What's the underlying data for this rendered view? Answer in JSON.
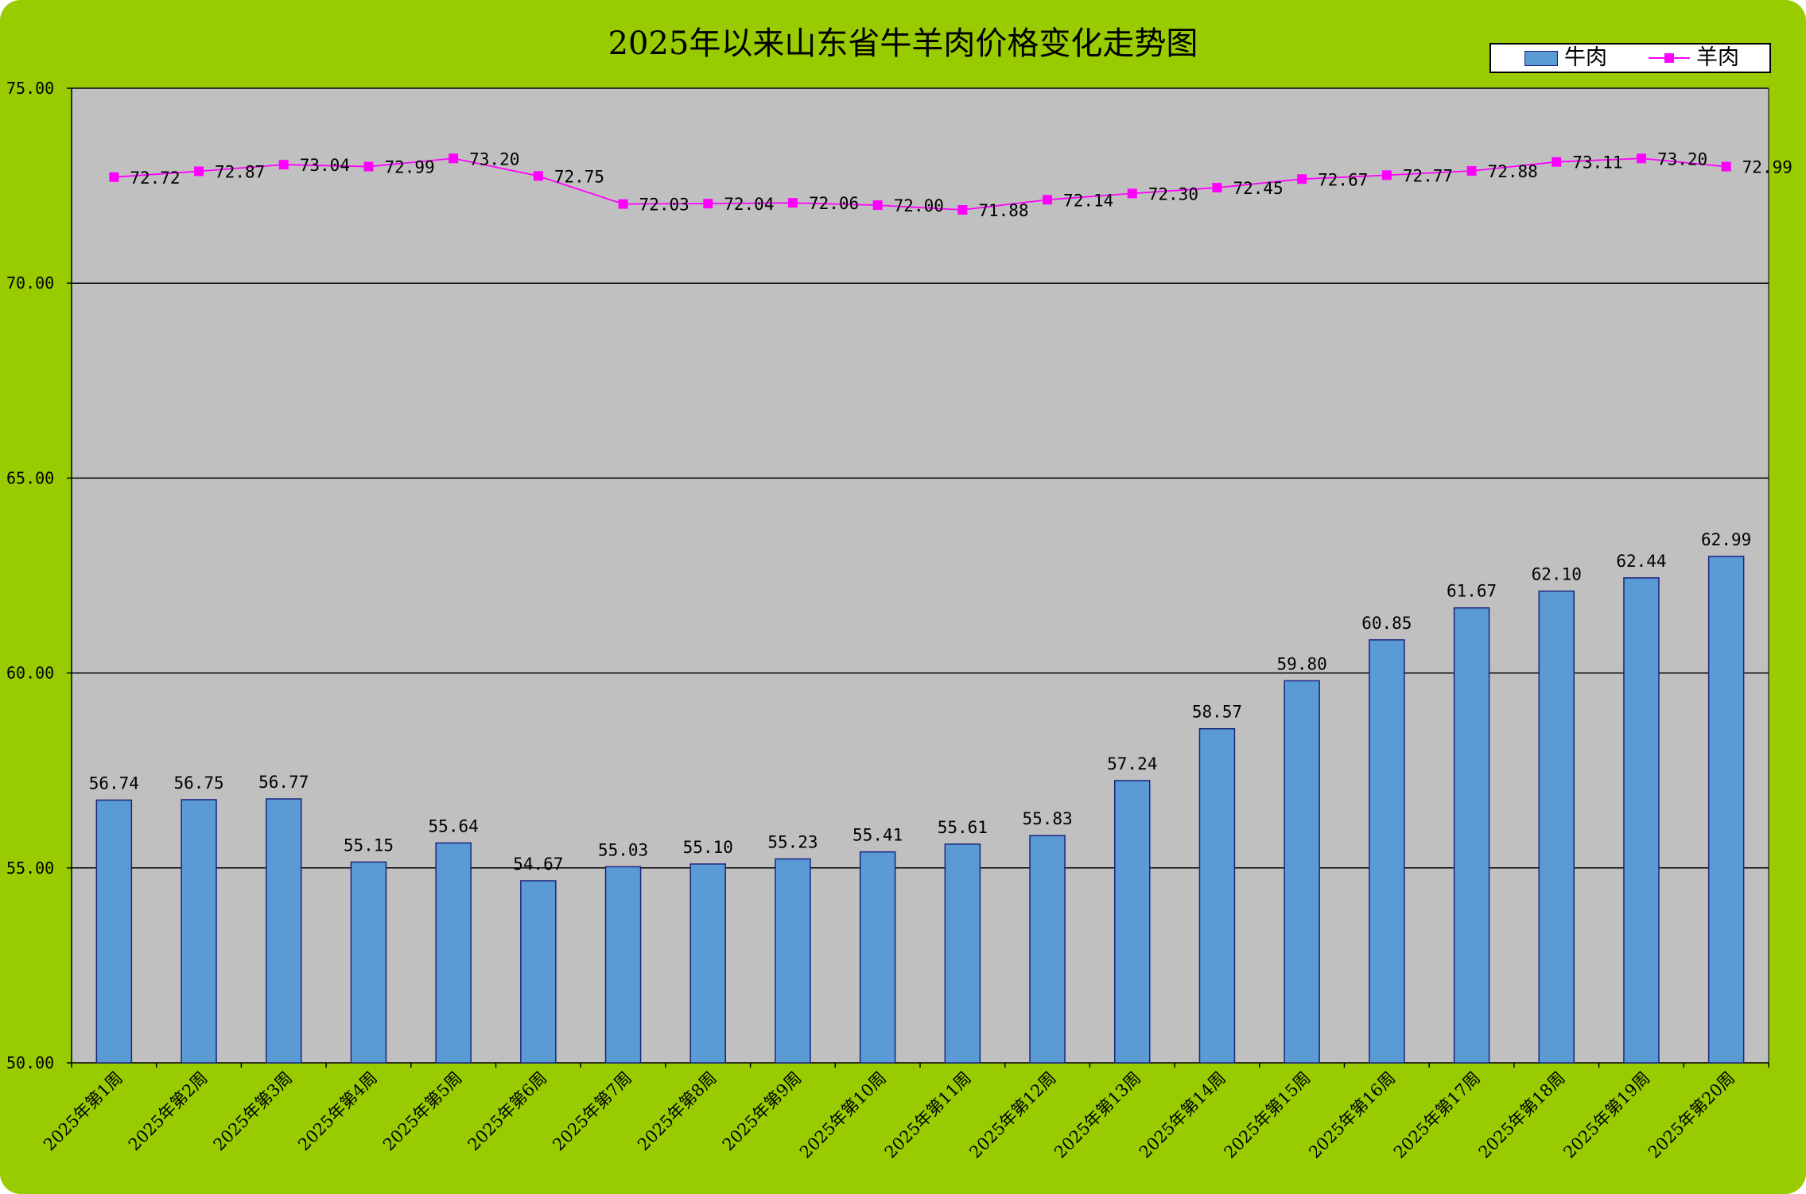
{
  "chart_data": {
    "type": "bar",
    "title": "2025年以来山东省牛羊肉价格变化走势图",
    "categories": [
      "2025年第1周",
      "2025年第2周",
      "2025年第3周",
      "2025年第4周",
      "2025年第5周",
      "2025年第6周",
      "2025年第7周",
      "2025年第8周",
      "2025年第9周",
      "2025年第10周",
      "2025年第11周",
      "2025年第12周",
      "2025年第13周",
      "2025年第14周",
      "2025年第15周",
      "2025年第16周",
      "2025年第17周",
      "2025年第18周",
      "2025年第19周",
      "2025年第20周"
    ],
    "series": [
      {
        "name": "牛肉",
        "type": "bar",
        "color": "#5b9bd5",
        "values": [
          56.74,
          56.75,
          56.77,
          55.15,
          55.64,
          54.67,
          55.03,
          55.1,
          55.23,
          55.41,
          55.61,
          55.83,
          57.24,
          58.57,
          59.8,
          60.85,
          61.67,
          62.1,
          62.44,
          62.99
        ],
        "labels": [
          "56.74",
          "56.75",
          "56.77",
          "55.15",
          "55.64",
          "54.67",
          "55.03",
          "55.10",
          "55.23",
          "55.41",
          "55.61",
          "55.83",
          "57.24",
          "58.57",
          "59.80",
          "60.85",
          "61.67",
          "62.10",
          "62.44",
          "62.99"
        ]
      },
      {
        "name": "羊肉",
        "type": "line",
        "color": "#ff00ff",
        "values": [
          72.72,
          72.87,
          73.04,
          72.99,
          73.2,
          72.75,
          72.03,
          72.04,
          72.06,
          72.0,
          71.88,
          72.14,
          72.3,
          72.45,
          72.67,
          72.77,
          72.88,
          73.11,
          73.2,
          72.99
        ],
        "labels": [
          "72.72",
          "72.87",
          "73.04",
          "72.99",
          "73.20",
          "72.75",
          "72.03",
          "72.04",
          "72.06",
          "72.00",
          "71.88",
          "72.14",
          "72.30",
          "72.45",
          "72.67",
          "72.77",
          "72.88",
          "73.11",
          "73.20",
          "72.99"
        ]
      }
    ],
    "ylim": [
      50,
      75
    ],
    "yticks": [
      50,
      55,
      60,
      65,
      70,
      75
    ],
    "ytick_labels": [
      "50.00",
      "55.00",
      "60.00",
      "65.00",
      "70.00",
      "75.00"
    ],
    "grid": true,
    "legend": "top-right"
  },
  "colors": {
    "frame_background": "#99cc00",
    "plot_background": "#c0c0c0",
    "bar_fill": "#5b9bd5",
    "bar_stroke": "#1a237e",
    "line": "#ff00ff"
  }
}
